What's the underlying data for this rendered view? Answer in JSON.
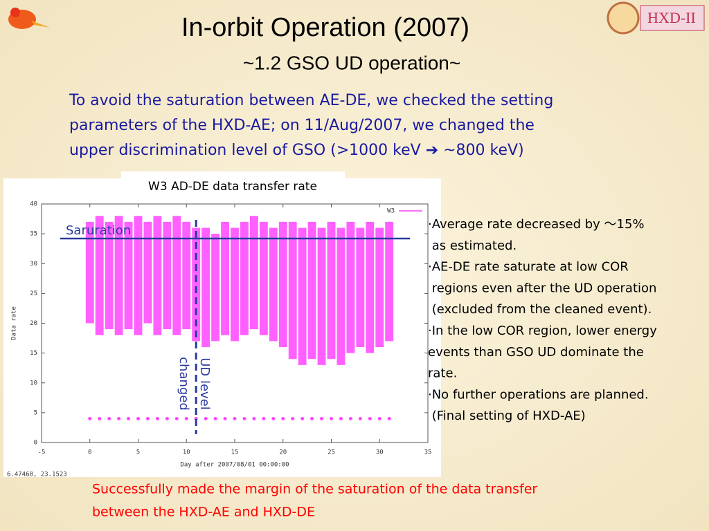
{
  "slide": {
    "title": "In-orbit Operation (2007)",
    "subtitle": "~1.2 GSO UD operation~",
    "intro": [
      "To avoid the saturation between AE-DE, we checked the setting",
      "parameters of the HXD-AE;  on 11/Aug/2007, we changed the",
      "upper discrimination level of GSO (>1000 keV ➔ ~800 keV)"
    ],
    "bullets": [
      "·Average rate decreased by ～15%",
      " as estimated.",
      "·AE-DE rate saturate at low COR",
      " regions even after the UD operation",
      " (excluded from the cleaned event).",
      "·In the low COR region, lower energy",
      "events than GSO UD dominate the",
      "rate.",
      "·No further operations are planned.",
      " (Final setting of HXD-AE)"
    ],
    "conclusion": [
      "Successfully made the margin of the saturation of the data transfer",
      "between the HXD-AE and HXD-DE"
    ],
    "cursor": "6.47468,  23.1523"
  },
  "chart_data": {
    "type": "range",
    "title": "W3 AD-DE data transfer rate",
    "xlabel": "Day after 2007/08/01 00:00:00",
    "ylabel": "Data rate",
    "xlim": [
      -5,
      35
    ],
    "xticks": [
      -5,
      0,
      5,
      10,
      15,
      20,
      25,
      30,
      35
    ],
    "ylim": [
      0,
      40
    ],
    "yticks": [
      0,
      5,
      10,
      15,
      20,
      25,
      30,
      35,
      40
    ],
    "x": [
      0,
      1,
      2,
      3,
      4,
      5,
      6,
      7,
      8,
      9,
      10,
      11,
      12,
      13,
      14,
      15,
      16,
      17,
      18,
      19,
      20,
      21,
      22,
      23,
      24,
      25,
      26,
      27,
      28,
      29,
      30,
      31
    ],
    "series": [
      {
        "name": "W3",
        "color": "#ff44ff",
        "high": [
          37,
          38,
          37,
          38,
          37,
          38,
          37,
          38,
          37,
          38,
          37,
          36,
          36,
          35,
          37,
          36,
          37,
          38,
          37,
          36,
          37,
          37,
          36,
          37,
          36,
          37,
          36,
          37,
          36,
          37,
          36,
          37
        ],
        "low": [
          20,
          18,
          19,
          18,
          19,
          18,
          20,
          18,
          19,
          18,
          19,
          17,
          16,
          17,
          18,
          17,
          18,
          19,
          18,
          17,
          16,
          14,
          13,
          14,
          13,
          14,
          13,
          15,
          16,
          15,
          16,
          17
        ],
        "floor": [
          4,
          4,
          4,
          4,
          4,
          4,
          4,
          4,
          4,
          4,
          4,
          4,
          4,
          4,
          4,
          4,
          4,
          4,
          4,
          4,
          4,
          4,
          4,
          4,
          4,
          4,
          4,
          4,
          4,
          4,
          4,
          4
        ]
      }
    ],
    "annotations": [
      {
        "text": "Saruration",
        "y": 34.2
      },
      {
        "lines": [
          "UD level",
          "changed"
        ],
        "x": 11
      }
    ]
  }
}
